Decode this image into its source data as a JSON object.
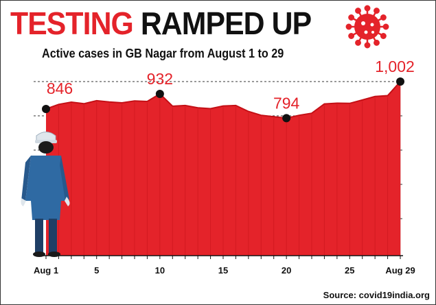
{
  "title": {
    "part1": "TESTING",
    "part2": "RAMPED UP"
  },
  "subtitle": "Active cases in GB Nagar from August 1 to 29",
  "source": "Source: covid19india.org",
  "colors": {
    "accent": "#e4232a",
    "text": "#111111",
    "figure_blue": "#2f6aa3"
  },
  "icons": [
    "coronavirus-icon",
    "health-worker-figure"
  ],
  "chart_data": {
    "type": "area",
    "title": "Active cases in GB Nagar from August 1 to 29",
    "xlabel": "",
    "ylabel": "",
    "x": [
      1,
      2,
      3,
      4,
      5,
      6,
      7,
      8,
      9,
      10,
      11,
      12,
      13,
      14,
      15,
      16,
      17,
      18,
      19,
      20,
      21,
      22,
      23,
      24,
      25,
      26,
      27,
      28,
      29
    ],
    "values": [
      846,
      872,
      885,
      876,
      893,
      886,
      881,
      892,
      889,
      932,
      862,
      866,
      853,
      848,
      863,
      866,
      832,
      810,
      802,
      794,
      810,
      822,
      875,
      879,
      878,
      897,
      917,
      922,
      1002
    ],
    "xticks": [
      {
        "x": 1,
        "label": "Aug 1"
      },
      {
        "x": 5,
        "label": "5"
      },
      {
        "x": 10,
        "label": "10"
      },
      {
        "x": 15,
        "label": "15"
      },
      {
        "x": 20,
        "label": "20"
      },
      {
        "x": 25,
        "label": "25"
      },
      {
        "x": 29,
        "label": "Aug 29"
      }
    ],
    "annotations": [
      {
        "x": 1,
        "value": 846,
        "label": "846"
      },
      {
        "x": 10,
        "value": 932,
        "label": "932"
      },
      {
        "x": 20,
        "value": 794,
        "label": "794"
      },
      {
        "x": 29,
        "value": 1002,
        "label": "1,002"
      }
    ],
    "ylim": [
      0,
      1002
    ],
    "grid": true,
    "legend": "none"
  }
}
